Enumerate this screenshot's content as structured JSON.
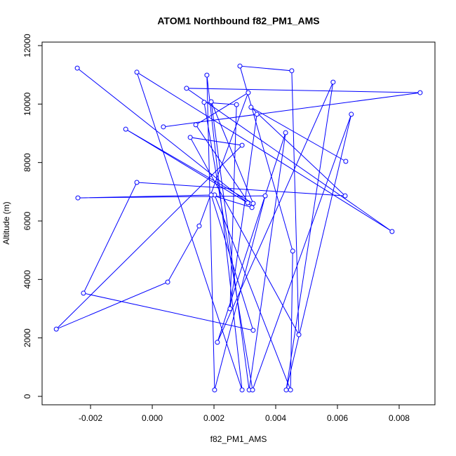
{
  "chart_data": {
    "type": "line",
    "title": "ATOM1 Northbound f82_PM1_AMS",
    "xlabel": "f82_PM1_AMS",
    "ylabel": "Altitude (m)",
    "marker": "circle",
    "color": "#0000ff",
    "x": [
      -0.00243,
      0.00309,
      -0.00086,
      0.00327,
      0.00191,
      0.00314,
      0.00432,
      0.00211,
      0.00586,
      0.00434,
      0.00645,
      0.00325,
      0.00168,
      0.00273,
      0.00252,
      0.00339,
      0.00036,
      0.00868,
      0.00111,
      0.00777,
      -0.0005,
      0.00291,
      0.00177,
      0.00202,
      0.00366,
      -0.00241,
      0.00202,
      0.00448,
      0.00455,
      0.00284,
      0.00452,
      0.00475,
      0.00123,
      0.00291,
      -0.00311,
      0.0005,
      0.00152,
      0.00311,
      0.00141,
      0.00323,
      0.00191,
      0.00327,
      -0.00223,
      -0.0005,
      0.00625,
      0.0032,
      0.00627
    ],
    "y": [
      11230,
      6620,
      9140,
      6600,
      10080,
      220,
      9020,
      1850,
      10750,
      220,
      9650,
      220,
      10060,
      9980,
      3000,
      9650,
      9220,
      10390,
      10540,
      5640,
      11090,
      220,
      10990,
      220,
      6860,
      6790,
      6890,
      220,
      4970,
      11300,
      11140,
      2110,
      8860,
      8590,
      2300,
      3910,
      5830,
      10390,
      9290,
      6460,
      6890,
      2260,
      3530,
      7320,
      6860,
      9890,
      8040
    ],
    "xlim": [
      -0.00357,
      0.00916
    ],
    "ylim": [
      -288,
      12120
    ],
    "xticks": [
      -0.002,
      {
        "value": 0,
        "label": "0.000"
      },
      0.002,
      0.004,
      0.006,
      0.008
    ],
    "yticks": [
      0,
      2000,
      4000,
      6000,
      8000,
      10000,
      12000
    ]
  }
}
